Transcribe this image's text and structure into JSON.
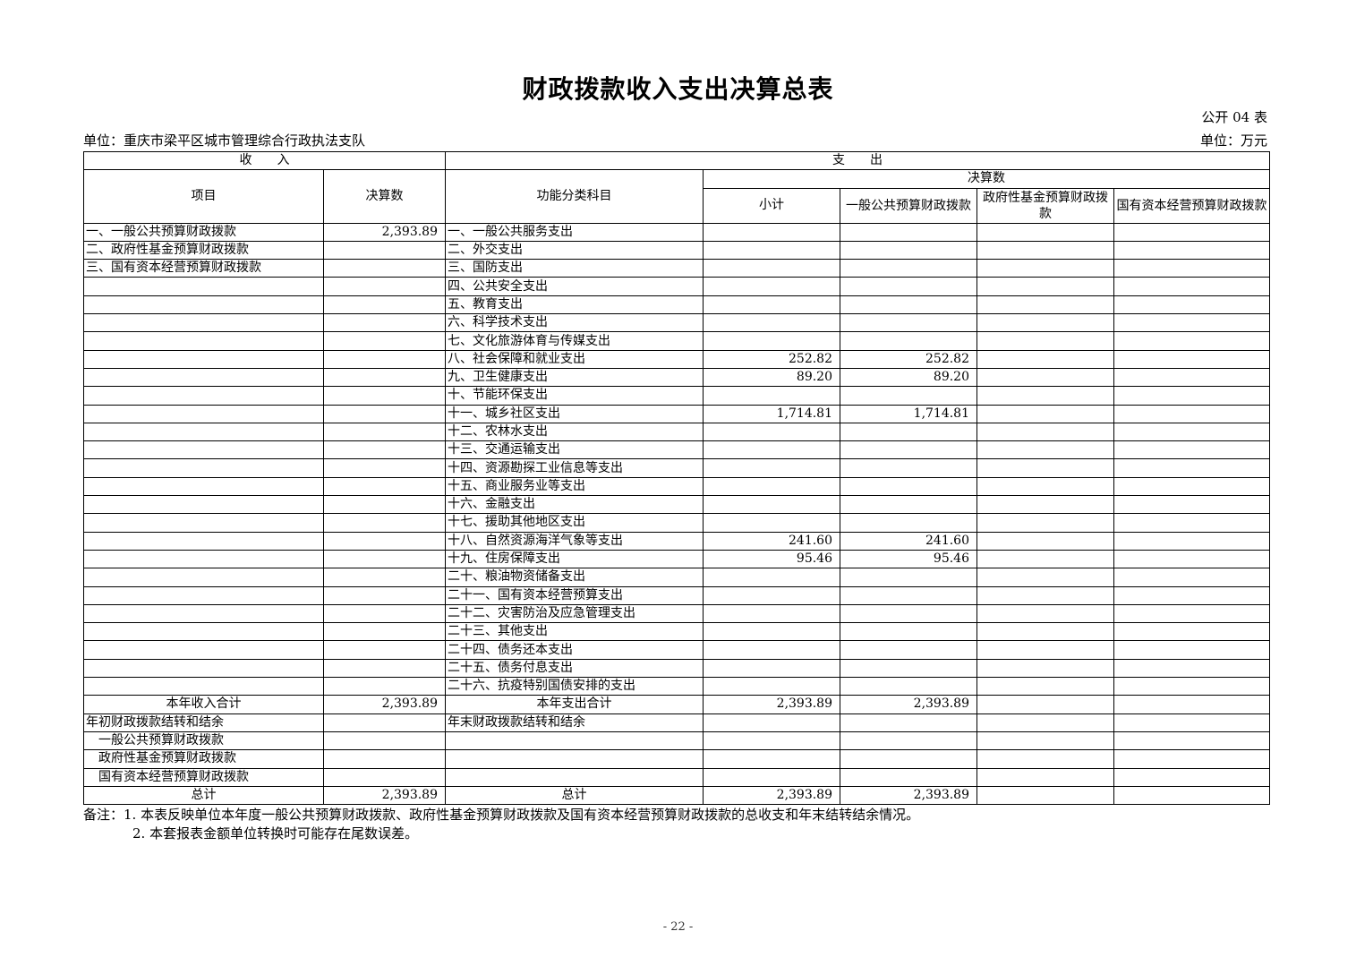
{
  "title": "财政拨款收入支出决算总表",
  "code": "公开 04 表",
  "unit_left": "单位：重庆市梁平区城市管理综合行政执法支队",
  "unit_right": "单位：万元",
  "header": {
    "income": "收　　入",
    "expense": "支　　出",
    "item": "项目",
    "amount": "决算数",
    "func": "功能分类科目",
    "budget": "决算数",
    "subtotal": "小计",
    "general": "一般公共预算财政拨款",
    "gov_fund": "政府性基金预算财政拨款",
    "soe": "国有资本经营预算财政拨款"
  },
  "rows": [
    {
      "l": "一、一般公共预算财政拨款",
      "lv": "2,393.89",
      "r": "一、一般公共服务支出",
      "s": "",
      "g": "",
      "f": "",
      "o": ""
    },
    {
      "l": "二、政府性基金预算财政拨款",
      "lv": "",
      "r": "二、外交支出",
      "s": "",
      "g": "",
      "f": "",
      "o": ""
    },
    {
      "l": "三、国有资本经营预算财政拨款",
      "lv": "",
      "r": "三、国防支出",
      "s": "",
      "g": "",
      "f": "",
      "o": ""
    },
    {
      "l": "",
      "lv": "",
      "r": "四、公共安全支出",
      "s": "",
      "g": "",
      "f": "",
      "o": ""
    },
    {
      "l": "",
      "lv": "",
      "r": "五、教育支出",
      "s": "",
      "g": "",
      "f": "",
      "o": ""
    },
    {
      "l": "",
      "lv": "",
      "r": "六、科学技术支出",
      "s": "",
      "g": "",
      "f": "",
      "o": ""
    },
    {
      "l": "",
      "lv": "",
      "r": "七、文化旅游体育与传媒支出",
      "s": "",
      "g": "",
      "f": "",
      "o": ""
    },
    {
      "l": "",
      "lv": "",
      "r": "八、社会保障和就业支出",
      "s": "252.82",
      "g": "252.82",
      "f": "",
      "o": ""
    },
    {
      "l": "",
      "lv": "",
      "r": "九、卫生健康支出",
      "s": "89.20",
      "g": "89.20",
      "f": "",
      "o": ""
    },
    {
      "l": "",
      "lv": "",
      "r": "十、节能环保支出",
      "s": "",
      "g": "",
      "f": "",
      "o": ""
    },
    {
      "l": "",
      "lv": "",
      "r": "十一、城乡社区支出",
      "s": "1,714.81",
      "g": "1,714.81",
      "f": "",
      "o": ""
    },
    {
      "l": "",
      "lv": "",
      "r": "十二、农林水支出",
      "s": "",
      "g": "",
      "f": "",
      "o": ""
    },
    {
      "l": "",
      "lv": "",
      "r": "十三、交通运输支出",
      "s": "",
      "g": "",
      "f": "",
      "o": ""
    },
    {
      "l": "",
      "lv": "",
      "r": "十四、资源勘探工业信息等支出",
      "s": "",
      "g": "",
      "f": "",
      "o": ""
    },
    {
      "l": "",
      "lv": "",
      "r": "十五、商业服务业等支出",
      "s": "",
      "g": "",
      "f": "",
      "o": ""
    },
    {
      "l": "",
      "lv": "",
      "r": "十六、金融支出",
      "s": "",
      "g": "",
      "f": "",
      "o": ""
    },
    {
      "l": "",
      "lv": "",
      "r": "十七、援助其他地区支出",
      "s": "",
      "g": "",
      "f": "",
      "o": ""
    },
    {
      "l": "",
      "lv": "",
      "r": "十八、自然资源海洋气象等支出",
      "s": "241.60",
      "g": "241.60",
      "f": "",
      "o": ""
    },
    {
      "l": "",
      "lv": "",
      "r": "十九、住房保障支出",
      "s": "95.46",
      "g": "95.46",
      "f": "",
      "o": ""
    },
    {
      "l": "",
      "lv": "",
      "r": "二十、粮油物资储备支出",
      "s": "",
      "g": "",
      "f": "",
      "o": ""
    },
    {
      "l": "",
      "lv": "",
      "r": "二十一、国有资本经营预算支出",
      "s": "",
      "g": "",
      "f": "",
      "o": ""
    },
    {
      "l": "",
      "lv": "",
      "r": "二十二、灾害防治及应急管理支出",
      "s": "",
      "g": "",
      "f": "",
      "o": ""
    },
    {
      "l": "",
      "lv": "",
      "r": "二十三、其他支出",
      "s": "",
      "g": "",
      "f": "",
      "o": ""
    },
    {
      "l": "",
      "lv": "",
      "r": "二十四、债务还本支出",
      "s": "",
      "g": "",
      "f": "",
      "o": ""
    },
    {
      "l": "",
      "lv": "",
      "r": "二十五、债务付息支出",
      "s": "",
      "g": "",
      "f": "",
      "o": ""
    },
    {
      "l": "",
      "lv": "",
      "r": "二十六、抗疫特别国债安排的支出",
      "s": "",
      "g": "",
      "f": "",
      "o": ""
    }
  ],
  "summary": {
    "year_income": "本年收入合计",
    "year_income_v": "2,393.89",
    "year_expense": "本年支出合计",
    "year_expense_s": "2,393.89",
    "year_expense_g": "2,393.89",
    "begin": "年初财政拨款结转和结余",
    "end": "年末财政拨款结转和结余",
    "b1": "一般公共预算财政拨款",
    "b2": "政府性基金预算财政拨款",
    "b3": "国有资本经营预算财政拨款",
    "total_l": "总计",
    "total_lv": "2,393.89",
    "total_r": "总计",
    "total_s": "2,393.89",
    "total_g": "2,393.89"
  },
  "notes": [
    "备注：1. 本表反映单位本年度一般公共预算财政拨款、政府性基金预算财政拨款及国有资本经营预算财政拨款的总收支和年末结转结余情况。",
    "2. 本套报表金额单位转换时可能存在尾数误差。"
  ],
  "page": "- 22 -"
}
